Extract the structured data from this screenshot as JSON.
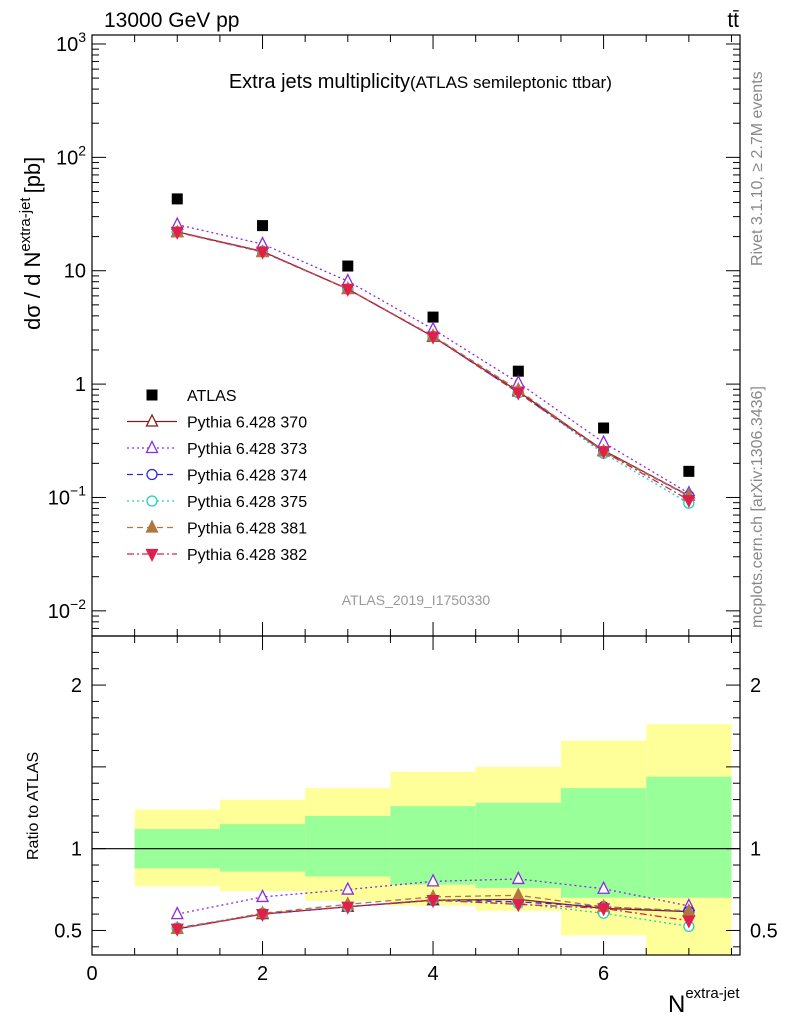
{
  "header": {
    "left": "13000 GeV pp",
    "right": "tt̄"
  },
  "side_text": {
    "top": "Rivet 3.1.10, ≥ 2.7M events",
    "bottom": "mcplots.cern.ch [arXiv:1306.3436]"
  },
  "chart_data": [
    {
      "panel": "main",
      "type": "scatter",
      "title": "Extra jets multiplicity",
      "subtitle": "(ATLAS semileptonic ttbar)",
      "watermark": "ATLAS_2019_I1750330",
      "xlabel": "N",
      "xlabel_sup": "extra-jet",
      "ylabel": "dσ / d N",
      "ylabel_sup": "extra-jet",
      "ylabel_unit": "[pb]",
      "yscale": "log",
      "xlim": [
        0,
        7.6
      ],
      "ylim": [
        0.006,
        1200
      ],
      "y_ticks": [
        {
          "value": 0.01,
          "base": "10",
          "exp": "−2"
        },
        {
          "value": 0.1,
          "base": "10",
          "exp": "−1"
        },
        {
          "value": 1,
          "base": "1",
          "exp": ""
        },
        {
          "value": 10,
          "base": "10",
          "exp": ""
        },
        {
          "value": 100,
          "base": "10",
          "exp": "2"
        },
        {
          "value": 1000,
          "base": "10",
          "exp": "3"
        }
      ],
      "legend_position": "bottom-left",
      "x": [
        1,
        2,
        3,
        4,
        5,
        6,
        7
      ],
      "series": [
        {
          "name": "ATLAS",
          "color": "#000000",
          "marker": "square-filled",
          "line": "none",
          "values": [
            43,
            25,
            11,
            3.9,
            1.3,
            0.41,
            0.17
          ]
        },
        {
          "name": "Pythia 6.428 370",
          "color": "#8b1a1a",
          "marker": "triangle-up-open",
          "line": "solid",
          "values": [
            22.0,
            14.8,
            6.9,
            2.62,
            0.86,
            0.26,
            0.104
          ]
        },
        {
          "name": "Pythia 6.428 373",
          "color": "#8a2be2",
          "marker": "triangle-up-open",
          "line": "dotted",
          "values": [
            25.5,
            17.2,
            8.1,
            3.05,
            1.03,
            0.305,
            0.109
          ]
        },
        {
          "name": "Pythia 6.428 374",
          "color": "#2a2ad8",
          "marker": "circle-open",
          "line": "dashed",
          "values": [
            22.0,
            14.8,
            6.9,
            2.62,
            0.84,
            0.255,
            0.103
          ]
        },
        {
          "name": "Pythia 6.428 375",
          "color": "#20d0c0",
          "marker": "circle-open",
          "line": "dotted",
          "values": [
            22.0,
            14.8,
            6.9,
            2.63,
            0.84,
            0.245,
            0.089
          ]
        },
        {
          "name": "Pythia 6.428 381",
          "color": "#b07840",
          "marker": "triangle-up-filled",
          "line": "dashed",
          "values": [
            21.8,
            14.6,
            6.9,
            2.66,
            0.89,
            0.255,
            0.104
          ]
        },
        {
          "name": "Pythia 6.428 382",
          "color": "#e0204a",
          "marker": "triangle-down-filled",
          "line": "dashdot",
          "values": [
            22.0,
            14.7,
            6.9,
            2.62,
            0.84,
            0.255,
            0.095
          ]
        }
      ]
    },
    {
      "panel": "ratio",
      "type": "line",
      "ylabel": "Ratio to ATLAS",
      "xlim": [
        0,
        7.6
      ],
      "ylim": [
        0.35,
        2.3
      ],
      "x_ticks": [
        0,
        2,
        4,
        6
      ],
      "y_ticks": [
        0.5,
        1,
        2
      ],
      "x": [
        1,
        2,
        3,
        4,
        5,
        6,
        7
      ],
      "bands": {
        "bins": [
          [
            0.5,
            1.5
          ],
          [
            1.5,
            2.5
          ],
          [
            2.5,
            3.5
          ],
          [
            3.5,
            4.5
          ],
          [
            4.5,
            5.5
          ],
          [
            5.5,
            6.5
          ],
          [
            6.5,
            7.5
          ]
        ],
        "inner": [
          [
            0.88,
            1.12
          ],
          [
            0.86,
            1.15
          ],
          [
            0.83,
            1.2
          ],
          [
            0.78,
            1.26
          ],
          [
            0.76,
            1.28
          ],
          [
            0.7,
            1.37
          ],
          [
            0.7,
            1.44
          ]
        ],
        "outer": [
          [
            0.77,
            1.24
          ],
          [
            0.74,
            1.3
          ],
          [
            0.68,
            1.37
          ],
          [
            0.65,
            1.47
          ],
          [
            0.62,
            1.5
          ],
          [
            0.47,
            1.66
          ],
          [
            0.35,
            1.76
          ]
        ],
        "inner_color": "#99ff99",
        "outer_color": "#ffff99"
      },
      "series": [
        {
          "name": "Pythia 6.428 370",
          "color": "#8b1a1a",
          "values": [
            0.51,
            0.6,
            0.645,
            0.685,
            0.69,
            0.635,
            0.615
          ]
        },
        {
          "name": "Pythia 6.428 373",
          "color": "#8a2be2",
          "values": [
            0.6,
            0.705,
            0.75,
            0.8,
            0.815,
            0.755,
            0.65
          ]
        },
        {
          "name": "Pythia 6.428 374",
          "color": "#2a2ad8",
          "values": [
            0.515,
            0.6,
            0.645,
            0.685,
            0.675,
            0.645,
            0.615
          ]
        },
        {
          "name": "Pythia 6.428 375",
          "color": "#20d0c0",
          "values": [
            0.515,
            0.605,
            0.645,
            0.69,
            0.665,
            0.605,
            0.525
          ]
        },
        {
          "name": "Pythia 6.428 381",
          "color": "#b07840",
          "values": [
            0.51,
            0.605,
            0.66,
            0.705,
            0.715,
            0.645,
            0.62
          ]
        },
        {
          "name": "Pythia 6.428 382",
          "color": "#e0204a",
          "values": [
            0.51,
            0.6,
            0.645,
            0.685,
            0.66,
            0.635,
            0.56
          ]
        }
      ]
    }
  ]
}
